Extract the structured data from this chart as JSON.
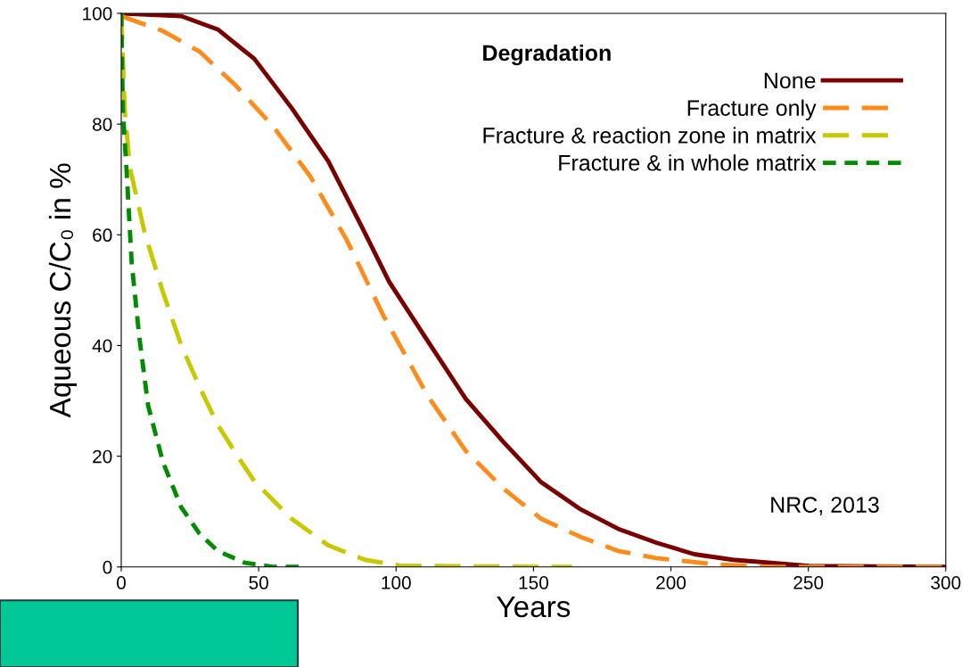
{
  "chart_data": {
    "type": "line",
    "xlabel": "Years",
    "ylabel": "Aqueous C/C₀ in %",
    "legend_title": "Degradation",
    "legend": "top right",
    "grid": false,
    "marker": "none",
    "xlim": [
      0,
      300
    ],
    "ylim": [
      0,
      100
    ],
    "xticks": [
      0,
      50,
      100,
      150,
      200,
      250,
      300
    ],
    "yticks": [
      0,
      20,
      40,
      60,
      80,
      100
    ],
    "annotations": [
      "NRC, 2013"
    ],
    "series": [
      {
        "name": "None",
        "color": "#7a0000",
        "line_style": "solid",
        "x": [
          0,
          21.8,
          35.1,
          48.4,
          62.0,
          75.3,
          88.6,
          97.5,
          111.4,
          125.3,
          139.2,
          152.8,
          166.8,
          180.7,
          194.6,
          208.5,
          222.5,
          250.3,
          300
        ],
        "values": [
          100,
          99.5,
          97.1,
          91.8,
          82.9,
          73.3,
          60.4,
          51.5,
          40.9,
          30.4,
          22.5,
          15.3,
          10.5,
          6.9,
          4.4,
          2.3,
          1.3,
          0.2,
          0
        ]
      },
      {
        "name": "Fracture only",
        "color": "#ff8c1a",
        "line_style": "dashed",
        "x": [
          0,
          15.2,
          28.5,
          41.8,
          55.4,
          68.7,
          82.0,
          95.3,
          111.4,
          125.3,
          139.2,
          152.8,
          166.8,
          180.7,
          194.6,
          215.5,
          236.4,
          300
        ],
        "values": [
          99.5,
          96.8,
          93.1,
          86.9,
          79.5,
          70.6,
          59.1,
          45.5,
          31.0,
          21.0,
          14.1,
          8.7,
          5.5,
          2.9,
          1.6,
          0.5,
          0,
          0
        ]
      },
      {
        "name": "Fracture & reaction zone in matrix",
        "color": "#c8c800",
        "line_style": "dashed",
        "x": [
          0,
          1.3,
          3.2,
          8.5,
          15.2,
          21.8,
          28.5,
          35.1,
          41.8,
          48.4,
          62.0,
          75.3,
          88.6,
          101.9,
          164
        ],
        "values": [
          100,
          82.2,
          72,
          60.4,
          49.6,
          40.1,
          32.5,
          25.7,
          20.4,
          15.5,
          8.7,
          3.9,
          1.3,
          0.2,
          0
        ]
      },
      {
        "name": "Fracture & in whole matrix",
        "color": "#008c00",
        "line_style": "dotted",
        "x": [
          0,
          0.6,
          1.9,
          3.8,
          6.6,
          9.8,
          15.2,
          21.8,
          28.5,
          35.1,
          44.6,
          55.4,
          67
        ],
        "values": [
          100,
          82.2,
          72,
          54.9,
          41.4,
          29.1,
          18.9,
          10.8,
          6.0,
          2.9,
          0.8,
          0,
          0
        ]
      }
    ]
  }
}
